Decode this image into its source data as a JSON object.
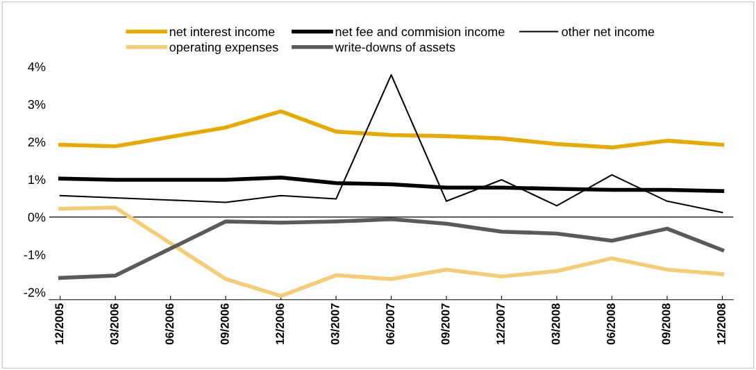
{
  "chart_data": {
    "type": "line",
    "categories": [
      "12/2005",
      "03/2006",
      "06/2006",
      "09/2006",
      "12/2006",
      "03/2007",
      "06/2007",
      "09/2007",
      "12/2007",
      "03/2008",
      "06/2008",
      "09/2008",
      "12/2008"
    ],
    "series": [
      {
        "name": "net interest income",
        "color": "#e8a900",
        "values": [
          1.92,
          1.88,
          2.13,
          2.38,
          2.81,
          2.27,
          2.18,
          2.15,
          2.09,
          1.94,
          1.85,
          2.03,
          1.92
        ]
      },
      {
        "name": "net fee and commision income",
        "color": "#000000",
        "values": [
          1.02,
          0.99,
          0.99,
          0.99,
          1.05,
          0.9,
          0.87,
          0.78,
          0.78,
          0.75,
          0.72,
          0.72,
          0.69
        ]
      },
      {
        "name": "other net income",
        "color": "#000000",
        "values": [
          0.57,
          0.51,
          0.45,
          0.39,
          0.57,
          0.48,
          3.78,
          0.42,
          0.99,
          0.3,
          1.12,
          0.42,
          0.12
        ]
      },
      {
        "name": "operating expenses",
        "color": "#f5cc74",
        "values": [
          0.22,
          0.25,
          -0.7,
          -1.65,
          -2.1,
          -1.55,
          -1.65,
          -1.4,
          -1.58,
          -1.44,
          -1.1,
          -1.4,
          -1.52
        ]
      },
      {
        "name": "write-downs of assets",
        "color": "#5a5a5a",
        "values": [
          -1.62,
          -1.56,
          -0.84,
          -0.12,
          -0.15,
          -0.12,
          -0.06,
          -0.18,
          -0.39,
          -0.44,
          -0.63,
          -0.31,
          -0.88
        ]
      }
    ],
    "ylim": [
      -2.2,
      4
    ],
    "yticks": [
      {
        "value": -2,
        "label": "-2%"
      },
      {
        "value": -1,
        "label": "-1%"
      },
      {
        "value": 0,
        "label": "0%"
      },
      {
        "value": 1,
        "label": "1%"
      },
      {
        "value": 2,
        "label": "2%"
      },
      {
        "value": 3,
        "label": "3%"
      },
      {
        "value": 4,
        "label": "4%"
      }
    ],
    "ref_lines": [
      {
        "axis": "y",
        "value": 0,
        "color": "#000000"
      }
    ],
    "grid": false,
    "legend": "top",
    "marker": "none",
    "line_style": "solid"
  }
}
